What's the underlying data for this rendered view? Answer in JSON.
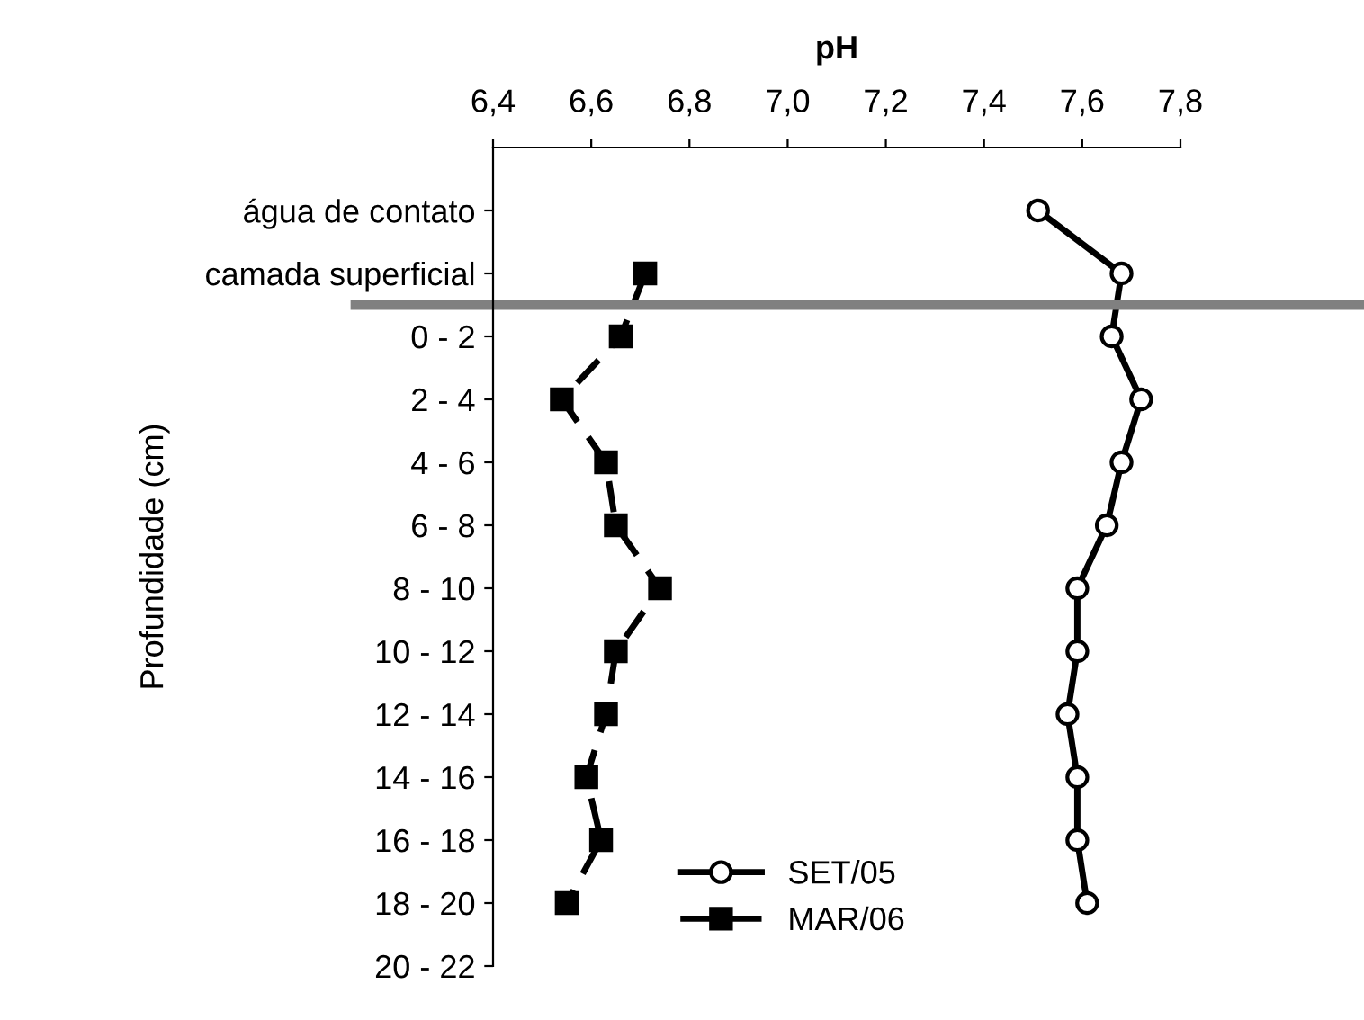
{
  "chart_data": {
    "type": "line",
    "orientation": "horizontal",
    "xlabel": "pH",
    "ylabel": "Profundidade (cm)",
    "categories": [
      "água de contato",
      "camada superficial",
      "0 - 2",
      "2 - 4",
      "4 - 6",
      "6 - 8",
      "8 - 10",
      "10 - 12",
      "12 - 14",
      "14 - 16",
      "16 - 18",
      "18 - 20",
      "20 - 22"
    ],
    "xlim": [
      6.4,
      7.8
    ],
    "xticks": [
      {
        "value": 6.4,
        "label": "6,4"
      },
      {
        "value": 6.6,
        "label": "6,6"
      },
      {
        "value": 6.8,
        "label": "6,8"
      },
      {
        "value": 7.0,
        "label": "7,0"
      },
      {
        "value": 7.2,
        "label": "7,2"
      },
      {
        "value": 7.4,
        "label": "7,4"
      },
      {
        "value": 7.6,
        "label": "7,6"
      },
      {
        "value": 7.8,
        "label": "7,8"
      }
    ],
    "series": [
      {
        "name": "SET/05",
        "color": "#000000",
        "marker": "circle",
        "line_style": "solid",
        "values": [
          7.51,
          7.68,
          7.66,
          7.72,
          7.68,
          7.65,
          7.59,
          7.59,
          7.57,
          7.59,
          7.59,
          7.61,
          null
        ]
      },
      {
        "name": "MAR/06",
        "color": "#000000",
        "marker": "square",
        "line_style": "dashed",
        "values": [
          null,
          6.71,
          6.66,
          6.54,
          6.63,
          6.65,
          6.74,
          6.65,
          6.63,
          6.59,
          6.62,
          6.55,
          null
        ]
      }
    ],
    "legend": "bottom",
    "grid": false
  }
}
